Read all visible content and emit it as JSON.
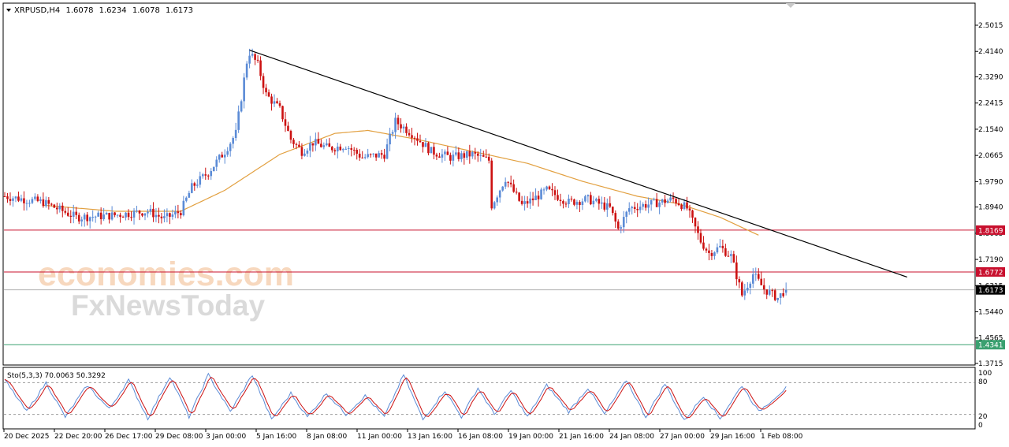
{
  "header": {
    "symbol": "XRPUSD,H4",
    "open": "1.6078",
    "high": "1.6234",
    "low": "1.6078",
    "close": "1.6173"
  },
  "watermark": {
    "brand_top": "economies.com",
    "brand_bottom": "FxNewsToday"
  },
  "indicator": {
    "label": "Sto(5,3,3) 70.0063 50.3292",
    "k_value": 70.0063,
    "d_value": 50.3292,
    "levels": [
      80,
      20
    ],
    "scale_labels": [
      "100",
      "80",
      "20",
      "0"
    ]
  },
  "colors": {
    "bull_candle": "#5b8bd6",
    "bear_candle": "#cc1111",
    "moving_average": "#e2a040",
    "trendline": "#000000",
    "resistance_line": "#c8102e",
    "support_line": "#3aa070",
    "price_label_bg": "#000000",
    "stoch_k": "#5b8bd6",
    "stoch_d": "#cc1111"
  },
  "chart_data": {
    "type": "candlestick",
    "instrument": "XRPUSD",
    "timeframe": "H4",
    "y_ticks": [
      "2.5015",
      "2.4140",
      "2.3290",
      "2.2415",
      "2.1540",
      "2.0665",
      "1.9790",
      "1.8940",
      "1.8065",
      "1.7190",
      "1.6315",
      "1.5440",
      "1.4565",
      "1.3715"
    ],
    "ylim": [
      1.3715,
      2.5015
    ],
    "x_ticks": [
      "20 Dec 2025",
      "22 Dec 20:00",
      "26 Dec 17:00",
      "29 Dec 08:00",
      "3 Jan 00:00",
      "5 Jan 16:00",
      "8 Jan 08:00",
      "11 Jan 00:00",
      "13 Jan 16:00",
      "16 Jan 08:00",
      "19 Jan 00:00",
      "21 Jan 16:00",
      "24 Jan 08:00",
      "27 Jan 00:00",
      "29 Jan 16:00",
      "1 Feb 08:00"
    ],
    "current_price": "1.6173",
    "horizontal_levels": [
      {
        "label": "1.8169",
        "value": 1.8169,
        "kind": "resistance"
      },
      {
        "label": "1.6772",
        "value": 1.6772,
        "kind": "resistance"
      },
      {
        "label": "1.4341",
        "value": 1.4341,
        "kind": "support"
      }
    ],
    "trendline": {
      "start": {
        "bar": 89,
        "price": 2.418
      },
      "end": {
        "bar": 328,
        "price": 1.66
      }
    },
    "price_anchors": [
      [
        0,
        1.93
      ],
      [
        14,
        1.91
      ],
      [
        26,
        1.86
      ],
      [
        38,
        1.865
      ],
      [
        52,
        1.88
      ],
      [
        58,
        1.855
      ],
      [
        64,
        1.88
      ],
      [
        68,
        1.96
      ],
      [
        74,
        2.01
      ],
      [
        80,
        2.08
      ],
      [
        84,
        2.14
      ],
      [
        88,
        2.38
      ],
      [
        89,
        2.41
      ],
      [
        92,
        2.37
      ],
      [
        95,
        2.27
      ],
      [
        100,
        2.22
      ],
      [
        104,
        2.12
      ],
      [
        108,
        2.08
      ],
      [
        112,
        2.11
      ],
      [
        118,
        2.09
      ],
      [
        124,
        2.1
      ],
      [
        130,
        2.06
      ],
      [
        138,
        2.07
      ],
      [
        142,
        2.18
      ],
      [
        148,
        2.14
      ],
      [
        155,
        2.08
      ],
      [
        162,
        2.06
      ],
      [
        170,
        2.07
      ],
      [
        176,
        2.05
      ],
      [
        177,
        1.9
      ],
      [
        182,
        1.99
      ],
      [
        188,
        1.9
      ],
      [
        192,
        1.92
      ],
      [
        197,
        1.95
      ],
      [
        205,
        1.91
      ],
      [
        212,
        1.92
      ],
      [
        220,
        1.89
      ],
      [
        223,
        1.82
      ],
      [
        227,
        1.89
      ],
      [
        232,
        1.9
      ],
      [
        238,
        1.91
      ],
      [
        243,
        1.92
      ],
      [
        248,
        1.89
      ],
      [
        253,
        1.78
      ],
      [
        256,
        1.74
      ],
      [
        260,
        1.76
      ],
      [
        264,
        1.73
      ],
      [
        268,
        1.6
      ],
      [
        272,
        1.67
      ],
      [
        276,
        1.62
      ],
      [
        281,
        1.59
      ],
      [
        283,
        1.61
      ],
      [
        284,
        1.6173
      ]
    ],
    "moving_average_anchors": [
      [
        14,
        1.9
      ],
      [
        40,
        1.88
      ],
      [
        64,
        1.88
      ],
      [
        80,
        1.95
      ],
      [
        100,
        2.07
      ],
      [
        120,
        2.14
      ],
      [
        132,
        2.15
      ],
      [
        150,
        2.12
      ],
      [
        170,
        2.08
      ],
      [
        190,
        2.04
      ],
      [
        210,
        1.98
      ],
      [
        230,
        1.93
      ],
      [
        245,
        1.905
      ],
      [
        260,
        1.86
      ],
      [
        274,
        1.8
      ]
    ],
    "stochastic_anchors": [
      [
        0,
        85
      ],
      [
        8,
        25
      ],
      [
        15,
        80
      ],
      [
        22,
        15
      ],
      [
        30,
        75
      ],
      [
        38,
        30
      ],
      [
        45,
        85
      ],
      [
        52,
        12
      ],
      [
        60,
        92
      ],
      [
        67,
        15
      ],
      [
        74,
        95
      ],
      [
        82,
        25
      ],
      [
        90,
        95
      ],
      [
        97,
        10
      ],
      [
        104,
        60
      ],
      [
        110,
        15
      ],
      [
        117,
        60
      ],
      [
        124,
        20
      ],
      [
        131,
        55
      ],
      [
        138,
        15
      ],
      [
        145,
        95
      ],
      [
        152,
        10
      ],
      [
        160,
        65
      ],
      [
        166,
        15
      ],
      [
        172,
        70
      ],
      [
        178,
        20
      ],
      [
        184,
        65
      ],
      [
        190,
        15
      ],
      [
        197,
        75
      ],
      [
        205,
        25
      ],
      [
        212,
        70
      ],
      [
        218,
        20
      ],
      [
        226,
        85
      ],
      [
        233,
        15
      ],
      [
        240,
        78
      ],
      [
        247,
        8
      ],
      [
        254,
        55
      ],
      [
        260,
        12
      ],
      [
        268,
        75
      ],
      [
        274,
        25
      ],
      [
        284,
        70
      ]
    ]
  }
}
